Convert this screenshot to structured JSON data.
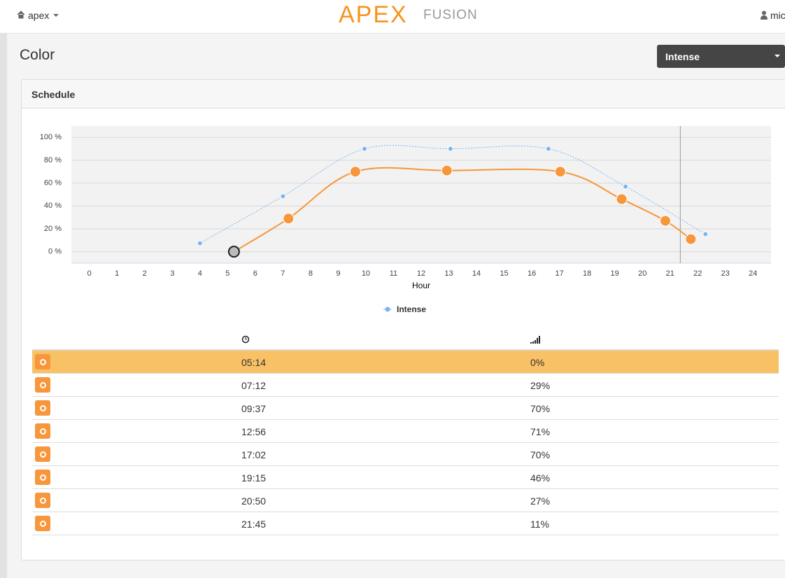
{
  "nav": {
    "account": "apex",
    "logo_main": "APEX",
    "logo_sub": "FUSION",
    "user": "mic"
  },
  "page_title": "Color",
  "dropdown": "Intense",
  "panel_title": "Schedule",
  "chart_data": {
    "type": "line",
    "x_label": "Hour",
    "xlim": [
      -0.65,
      24.65
    ],
    "xticks": [
      0,
      1,
      2,
      3,
      4,
      5,
      6,
      7,
      8,
      9,
      10,
      11,
      12,
      13,
      14,
      15,
      16,
      17,
      18,
      19,
      20,
      21,
      22,
      23,
      24
    ],
    "ylim": [
      -10,
      110
    ],
    "yticks": [
      {
        "value": 0,
        "label": "0 %"
      },
      {
        "value": 20,
        "label": "20 %"
      },
      {
        "value": 40,
        "label": "40 %"
      },
      {
        "value": 60,
        "label": "60 %"
      },
      {
        "value": 80,
        "label": "80 %"
      },
      {
        "value": 100,
        "label": "100 %"
      }
    ],
    "grid": true,
    "marker_x": 21.37,
    "series": [
      {
        "name": "Intense",
        "color": "#7cb5ec",
        "x": [
          4,
          7,
          9.95,
          13.06,
          16.6,
          19.39,
          22.28
        ],
        "values": [
          7.4,
          48.5,
          90,
          90,
          90,
          57,
          15.3
        ]
      },
      {
        "color": "#f7963a",
        "x": [
          5.23,
          7.2,
          9.62,
          12.93,
          17.03,
          19.25,
          20.83,
          21.75
        ],
        "values": [
          0,
          29,
          70,
          71,
          70,
          46,
          27,
          11
        ]
      }
    ]
  },
  "table": {
    "selected_row": 0,
    "rows": [
      [
        "05:14",
        "0%"
      ],
      [
        "07:12",
        "29%"
      ],
      [
        "09:37",
        "70%"
      ],
      [
        "12:56",
        "71%"
      ],
      [
        "17:02",
        "70%"
      ],
      [
        "19:15",
        "46%"
      ],
      [
        "20:50",
        "27%"
      ],
      [
        "21:45",
        "11%"
      ]
    ]
  }
}
